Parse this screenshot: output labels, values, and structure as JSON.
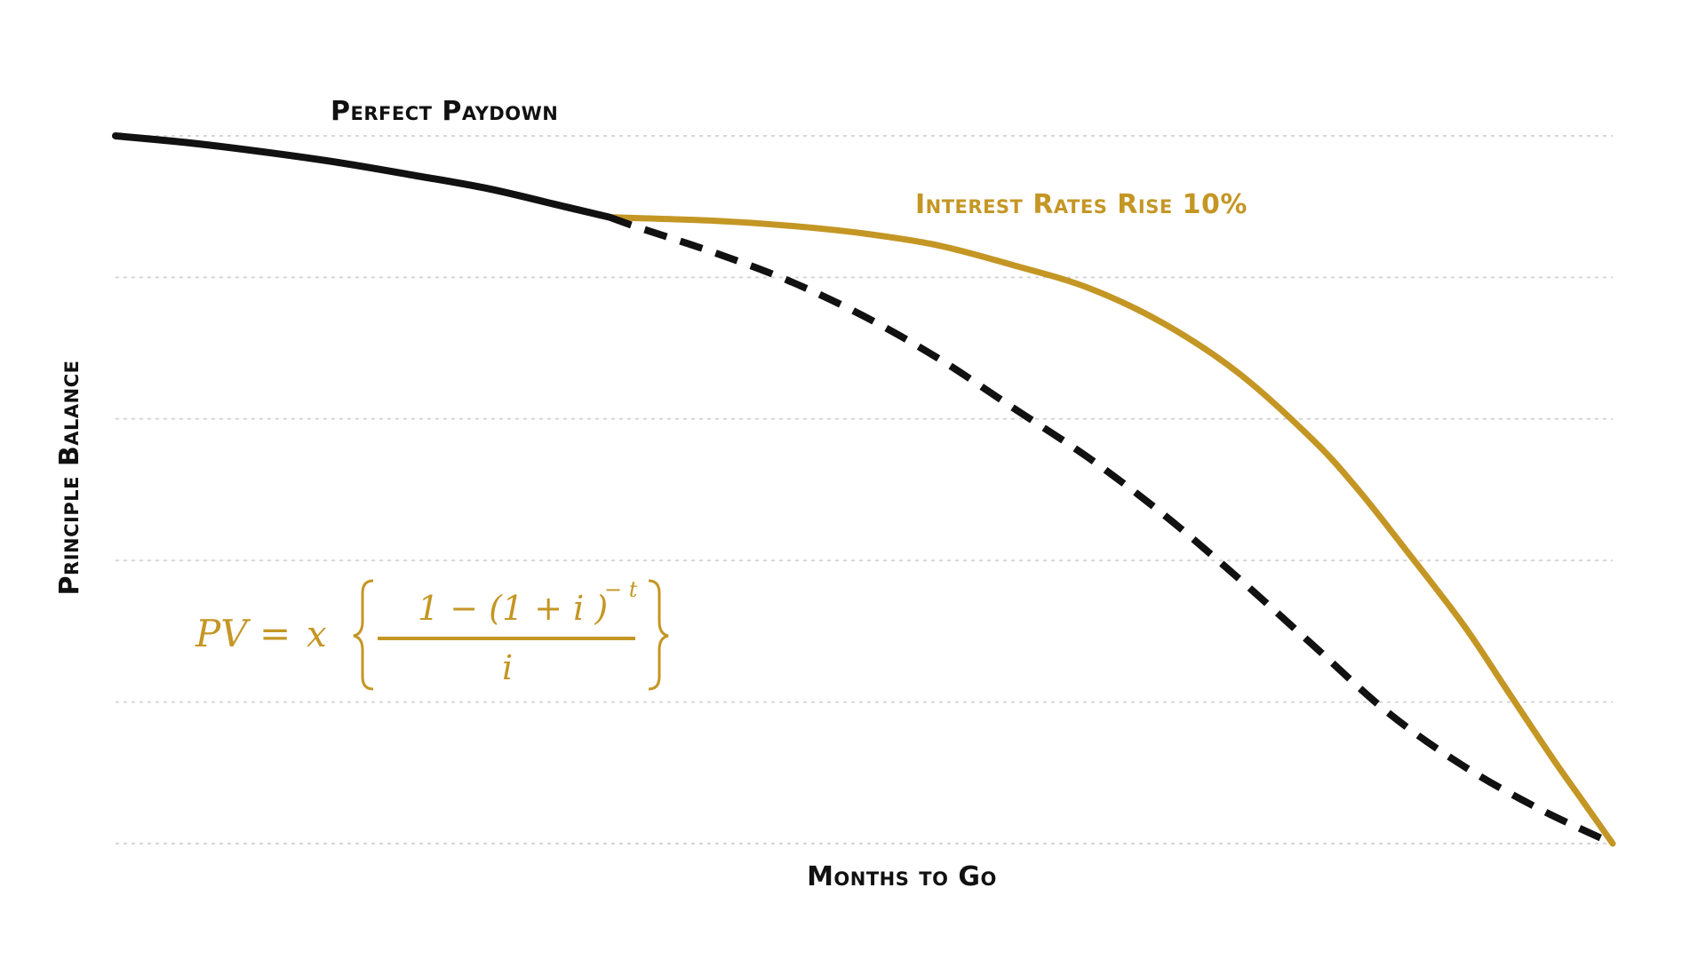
{
  "chart_data": {
    "type": "line",
    "xlabel": "Months to Go",
    "ylabel": "Principle Balance",
    "xlim": [
      0,
      1
    ],
    "ylim": [
      0,
      1
    ],
    "grid": true,
    "series": [
      {
        "name": "Perfect Paydown",
        "style": "solid-then-dashed",
        "color": "#111111",
        "x": [
          0,
          0.05,
          0.1,
          0.15,
          0.2,
          0.25,
          0.3,
          0.33,
          0.35,
          0.4,
          0.45,
          0.5,
          0.55,
          0.6,
          0.65,
          0.7,
          0.75,
          0.8,
          0.85,
          0.9,
          0.95,
          1.0
        ],
        "y": [
          1.0,
          0.99,
          0.977,
          0.962,
          0.944,
          0.925,
          0.9,
          0.885,
          0.87,
          0.835,
          0.795,
          0.745,
          0.685,
          0.615,
          0.545,
          0.465,
          0.375,
          0.28,
          0.185,
          0.11,
          0.05,
          0.0
        ]
      },
      {
        "name": "Interest Rates Rise 10%",
        "style": "solid",
        "color": "#C49624",
        "x": [
          0.33,
          0.4,
          0.45,
          0.5,
          0.55,
          0.6,
          0.65,
          0.7,
          0.75,
          0.8,
          0.83,
          0.86,
          0.9,
          0.93,
          0.96,
          0.98,
          1.0
        ],
        "y": [
          0.885,
          0.88,
          0.873,
          0.862,
          0.845,
          0.817,
          0.785,
          0.735,
          0.665,
          0.57,
          0.5,
          0.42,
          0.31,
          0.215,
          0.12,
          0.06,
          0.0
        ]
      }
    ],
    "annotations": [
      {
        "text": "Perfect Paydown",
        "color": "#111111"
      },
      {
        "text": "Interest Rates Rise 10%",
        "color": "#C49624"
      }
    ]
  },
  "formula": {
    "lhs": "PV =",
    "x": "x",
    "numerator_1": "1 − (1 + i )",
    "exponent": "− t",
    "denominator": "i",
    "color": "#C49624"
  }
}
